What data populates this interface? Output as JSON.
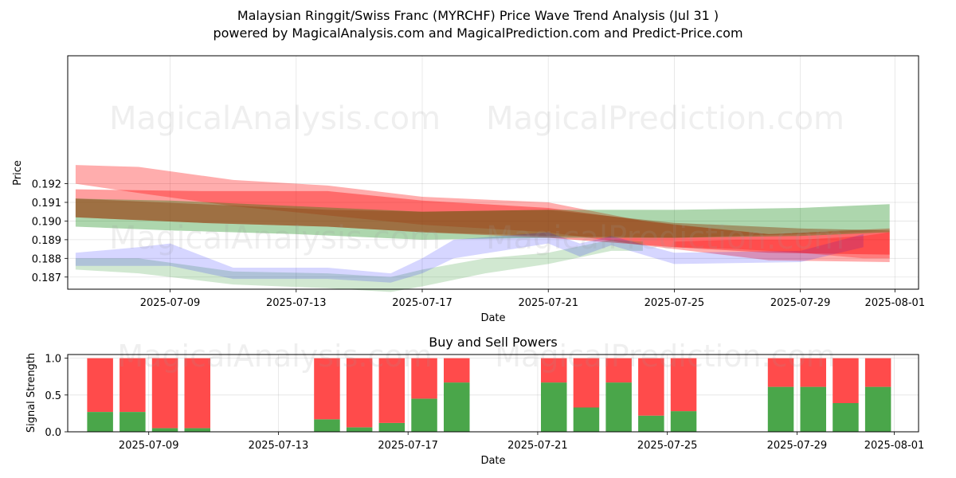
{
  "title_line1": "Malaysian Ringgit/Swiss Franc (MYRCHF) Price Wave Trend Analysis (Jul 31 )",
  "title_line2": "powered by MagicalAnalysis.com and MagicalPrediction.com and Predict-Price.com",
  "watermarks": [
    "MagicalAnalysis.com",
    "MagicalPrediction.com"
  ],
  "colors": {
    "red": "#ff0000",
    "green": "#008000",
    "blue": "#0000ff",
    "brown": "#8b4513",
    "buy": "#4aa64a",
    "sell": "#ff4b4b"
  },
  "chart_data": [
    {
      "type": "area",
      "title": "Price Wave Trend Analysis",
      "xlabel": "Date",
      "ylabel": "Price",
      "xlim": [
        "2025-07-05 18:00",
        "2025-08-01 18:00"
      ],
      "ylim": [
        0.18635,
        0.19885
      ],
      "xticks": [
        "2025-07-09",
        "2025-07-13",
        "2025-07-17",
        "2025-07-21",
        "2025-07-25",
        "2025-07-29",
        "2025-08-01"
      ],
      "yticks": [
        "0.187",
        "0.188",
        "0.189",
        "0.190",
        "0.191",
        "0.192"
      ],
      "grid": true,
      "series": [
        {
          "name": "red-wide",
          "color": "red",
          "opacity": 0.32,
          "x": [
            "2025-07-06",
            "2025-07-08",
            "2025-07-11",
            "2025-07-14",
            "2025-07-17",
            "2025-07-21",
            "2025-07-24",
            "2025-07-28",
            "2025-07-31 20:00"
          ],
          "upper": [
            0.193,
            0.1929,
            0.1922,
            0.1919,
            0.1913,
            0.191,
            0.19,
            0.1893,
            0.1895
          ],
          "lower": [
            0.192,
            0.1915,
            0.1908,
            0.1903,
            0.1898,
            0.1894,
            0.1887,
            0.1879,
            0.1878
          ]
        },
        {
          "name": "red-core",
          "color": "red",
          "opacity": 0.38,
          "x": [
            "2025-07-06",
            "2025-07-10",
            "2025-07-14",
            "2025-07-17",
            "2025-07-21",
            "2025-07-25",
            "2025-07-28",
            "2025-07-31 20:00"
          ],
          "upper": [
            0.1917,
            0.1916,
            0.1916,
            0.1911,
            0.1907,
            0.1898,
            0.1893,
            0.1896
          ],
          "lower": [
            0.1902,
            0.1899,
            0.1897,
            0.1894,
            0.1891,
            0.1886,
            0.1883,
            0.1882
          ]
        },
        {
          "name": "green-wide",
          "color": "green",
          "opacity": 0.32,
          "x": [
            "2025-07-06",
            "2025-07-09",
            "2025-07-13",
            "2025-07-17",
            "2025-07-21",
            "2025-07-25",
            "2025-07-29",
            "2025-07-31 20:00"
          ],
          "upper": [
            0.1912,
            0.1911,
            0.1908,
            0.1905,
            0.1906,
            0.1906,
            0.1907,
            0.1909
          ],
          "lower": [
            0.1897,
            0.1895,
            0.1893,
            0.189,
            0.1891,
            0.1891,
            0.1892,
            0.1894
          ]
        },
        {
          "name": "brown-core",
          "color": "brown",
          "opacity": 0.45,
          "x": [
            "2025-07-06",
            "2025-07-10",
            "2025-07-14",
            "2025-07-17",
            "2025-07-21",
            "2025-07-25",
            "2025-07-29",
            "2025-07-31 20:00"
          ],
          "upper": [
            0.1912,
            0.1909,
            0.1906,
            0.1905,
            0.1906,
            0.1899,
            0.1896,
            0.1895
          ],
          "lower": [
            0.1902,
            0.1899,
            0.1897,
            0.1894,
            0.1892,
            0.1891,
            0.1893,
            0.1895
          ]
        },
        {
          "name": "green-lower",
          "color": "green",
          "opacity": 0.18,
          "x": [
            "2025-07-06",
            "2025-07-08",
            "2025-07-11",
            "2025-07-14",
            "2025-07-16",
            "2025-07-17",
            "2025-07-19",
            "2025-07-21",
            "2025-07-23",
            "2025-07-24"
          ],
          "upper": [
            0.188,
            0.188,
            0.1873,
            0.1872,
            0.187,
            0.1874,
            0.188,
            0.1883,
            0.189,
            0.1889
          ],
          "lower": [
            0.1874,
            0.1872,
            0.1866,
            0.1864,
            0.1862,
            0.1865,
            0.1872,
            0.1877,
            0.1884,
            0.1884
          ]
        },
        {
          "name": "blue-lower",
          "color": "blue",
          "opacity": 0.16,
          "x": [
            "2025-07-06",
            "2025-07-08",
            "2025-07-09",
            "2025-07-11",
            "2025-07-14",
            "2025-07-16",
            "2025-07-17",
            "2025-07-18",
            "2025-07-21",
            "2025-07-22",
            "2025-07-23",
            "2025-07-25",
            "2025-07-29",
            "2025-07-31"
          ],
          "upper": [
            0.1883,
            0.1886,
            0.1888,
            0.1875,
            0.1875,
            0.1872,
            0.188,
            0.189,
            0.1894,
            0.1888,
            0.1892,
            0.1883,
            0.1884,
            0.1893
          ],
          "lower": [
            0.1876,
            0.1876,
            0.1876,
            0.1869,
            0.1869,
            0.1867,
            0.1872,
            0.188,
            0.1888,
            0.1881,
            0.1887,
            0.1877,
            0.1878,
            0.1886
          ]
        },
        {
          "name": "pink-tail",
          "color": "red",
          "opacity": 0.28,
          "x": [
            "2025-07-25",
            "2025-07-27",
            "2025-07-29",
            "2025-07-31",
            "2025-07-31 20:00"
          ],
          "upper": [
            0.1889,
            0.189,
            0.189,
            0.1892,
            0.1894
          ],
          "lower": [
            0.1886,
            0.1885,
            0.1883,
            0.188,
            0.188
          ]
        }
      ]
    },
    {
      "type": "bar",
      "title": "Buy and Sell Powers",
      "xlabel": "Date",
      "ylabel": "Signal Strength",
      "ylim": [
        0,
        1.05
      ],
      "yticks": [
        "0.0",
        "0.5",
        "1.0"
      ],
      "xticks": [
        "2025-07-09",
        "2025-07-13",
        "2025-07-17",
        "2025-07-21",
        "2025-07-25",
        "2025-07-29",
        "2025-08-01"
      ],
      "xlim": [
        "2025-07-06 12:00",
        "2025-08-01 18:00"
      ],
      "categories": [
        "2025-07-08",
        "2025-07-09",
        "2025-07-10",
        "2025-07-11",
        "2025-07-15",
        "2025-07-16",
        "2025-07-17",
        "2025-07-18",
        "2025-07-19",
        "2025-07-22",
        "2025-07-23",
        "2025-07-24",
        "2025-07-25",
        "2025-07-26",
        "2025-07-29",
        "2025-07-30",
        "2025-07-31",
        "2025-08-01"
      ],
      "series": [
        {
          "name": "Buy",
          "color": "buy",
          "values": [
            0.27,
            0.27,
            0.05,
            0.05,
            0.17,
            0.06,
            0.12,
            0.45,
            0.67,
            0.67,
            0.33,
            0.67,
            0.22,
            0.28,
            0.61,
            0.61,
            0.39,
            0.61
          ]
        },
        {
          "name": "Sell",
          "color": "sell",
          "values": [
            0.73,
            0.73,
            0.95,
            0.95,
            0.83,
            0.94,
            0.88,
            0.55,
            0.33,
            0.33,
            0.67,
            0.33,
            0.78,
            0.72,
            0.39,
            0.39,
            0.61,
            0.39
          ]
        }
      ]
    }
  ]
}
